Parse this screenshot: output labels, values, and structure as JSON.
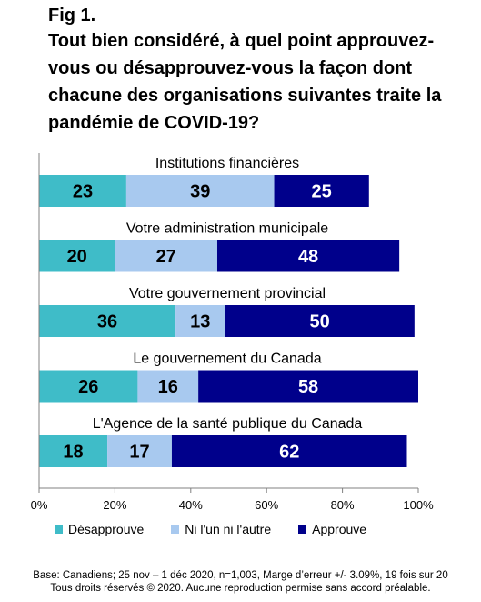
{
  "figure": {
    "label": "Fig 1.",
    "title": "Tout bien considéré, à quel point approuvez-vous ou désapprouvez-vous la façon dont chacune des organisations suivantes traite la pandémie de COVID-19?"
  },
  "chart_data": {
    "type": "bar",
    "orientation": "horizontal",
    "stacked": true,
    "categories": [
      "Institutions financières",
      "Votre administration municipale",
      "Votre gouvernement provincial",
      "Le gouvernement du Canada",
      "L'Agence de la santé publique du Canada"
    ],
    "series": [
      {
        "name": "Désapprouve",
        "color": "#3fbcc8",
        "values": [
          23,
          20,
          36,
          26,
          18
        ]
      },
      {
        "name": "Ni l'un ni l'autre",
        "color": "#a8c9ef",
        "values": [
          39,
          27,
          13,
          16,
          17
        ]
      },
      {
        "name": "Approuve",
        "color": "#00008b",
        "values": [
          25,
          48,
          50,
          58,
          62
        ]
      }
    ],
    "x_ticks": [
      "0%",
      "20%",
      "40%",
      "60%",
      "80%",
      "100%"
    ],
    "xlim": [
      0,
      100
    ],
    "legend_position": "bottom",
    "grid": false
  },
  "footer": {
    "line1": "Base: Canadiens; 25 nov – 1 déc 2020, n=1,003, Marge d’erreur +/- 3.09%, 19 fois sur 20",
    "line2": "Tous droits réservés © 2020. Aucune reproduction permise sans accord préalable."
  }
}
